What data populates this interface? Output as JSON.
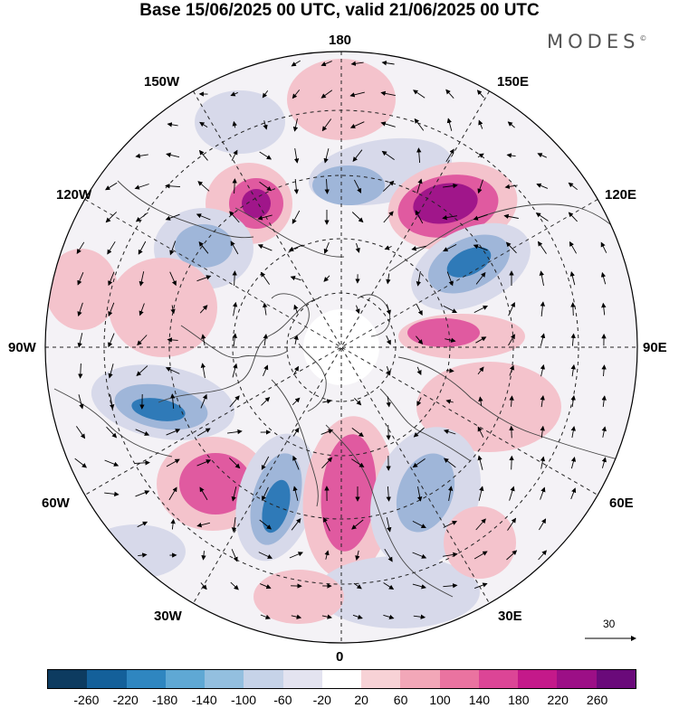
{
  "title": "Base 15/06/2025 00 UTC, valid 21/06/2025 00 UTC",
  "brand": "MODES",
  "brand_mark": "©",
  "longitude_labels": {
    "top": "180",
    "top_left": "150W",
    "top_right": "150E",
    "upper_left": "120W",
    "upper_right": "120E",
    "left": "90W",
    "right": "90E",
    "lower_left": "60W",
    "lower_right": "60E",
    "bottom_left": "30W",
    "bottom_right": "30E",
    "bottom": "0"
  },
  "reference_vector": {
    "label": "30"
  },
  "colorbar": {
    "colors": [
      "#0d3b60",
      "#14609a",
      "#2f86c0",
      "#5fa8d4",
      "#93bfdf",
      "#c6d3e8",
      "#e3e3f0",
      "#ffffff",
      "#f7d2d6",
      "#f2a7b8",
      "#ea73a0",
      "#dc4596",
      "#c4198a",
      "#9c0f86",
      "#6a0a7a"
    ],
    "ticks": [
      "-260",
      "-220",
      "-180",
      "-140",
      "-100",
      "-60",
      "-20",
      "20",
      "60",
      "100",
      "140",
      "180",
      "220",
      "260"
    ]
  },
  "anomaly_colors": {
    "strong_positive": "#a0168a",
    "positive": "#e05aa0",
    "weak_positive": "#f4c3cc",
    "weak_negative": "#d7d9ea",
    "negative": "#9fb6d9",
    "strong_negative": "#2f7ab8"
  }
}
